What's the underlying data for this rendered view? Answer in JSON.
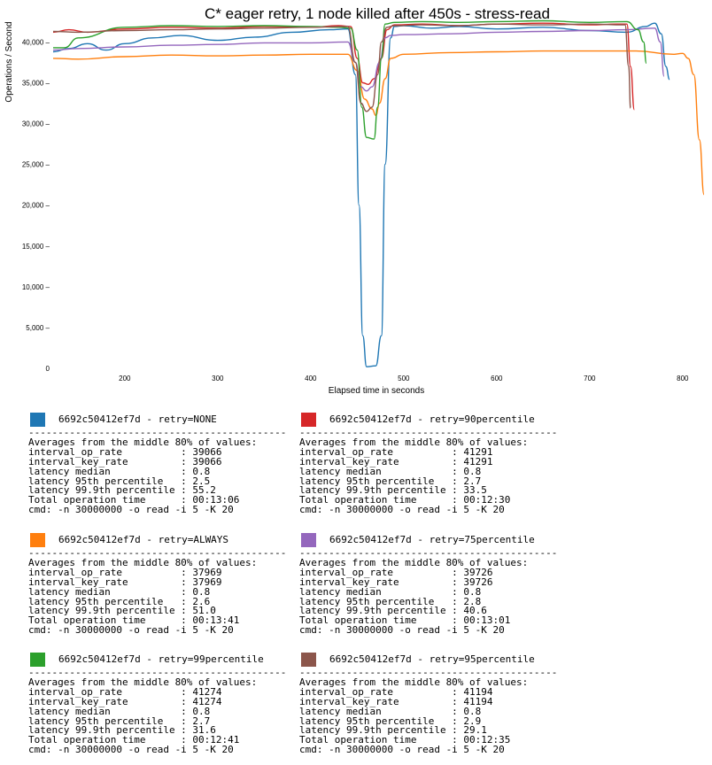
{
  "chart_data": {
    "type": "line",
    "title": "C* eager retry, 1 node killed after 450s - stress-read",
    "xlabel": "Elapsed time in seconds",
    "ylabel": "Operations / Second",
    "xlim": [
      123,
      823
    ],
    "ylim": [
      0,
      42000
    ],
    "xticks": [
      200,
      300,
      400,
      500,
      600,
      700,
      800
    ],
    "yticks": [
      0,
      5000,
      10000,
      15000,
      20000,
      25000,
      30000,
      35000,
      40000
    ],
    "xtick_labels": [
      "200",
      "300",
      "400",
      "500",
      "600",
      "700",
      "800"
    ],
    "ytick_labels": [
      "0",
      "5,000 –",
      "10,000 –",
      "15,000 –",
      "20,000 –",
      "25,000 –",
      "30,000 –",
      "35,000 –",
      "40,000 –"
    ],
    "grid": false,
    "series": [
      {
        "name": "6692c50412ef7d - retry=NONE",
        "color": "#1f77b4",
        "x": [
          123,
          140,
          160,
          180,
          200,
          230,
          260,
          300,
          340,
          380,
          420,
          440,
          448,
          452,
          456,
          460,
          470,
          476,
          480,
          486,
          490,
          500,
          530,
          560,
          600,
          650,
          700,
          740,
          760,
          770,
          777,
          782,
          786
        ],
        "y": [
          38800,
          39200,
          39800,
          39000,
          39800,
          40500,
          40800,
          40200,
          40600,
          41200,
          41500,
          41600,
          36000,
          20000,
          4000,
          200,
          300,
          4000,
          25000,
          40500,
          41900,
          42000,
          41700,
          41900,
          41600,
          41800,
          41400,
          41200,
          41900,
          42300,
          41000,
          37000,
          35400
        ]
      },
      {
        "name": "6692c50412ef7d - retry=90percentile",
        "color": "#d62728",
        "x": [
          123,
          140,
          160,
          200,
          250,
          300,
          350,
          400,
          430,
          443,
          450,
          456,
          462,
          468,
          476,
          482,
          490,
          520,
          560,
          600,
          650,
          700,
          730,
          740,
          744,
          748
        ],
        "y": [
          41200,
          41500,
          41200,
          41600,
          41800,
          41700,
          41900,
          41800,
          42000,
          41900,
          38000,
          35000,
          34800,
          35500,
          38000,
          41500,
          42100,
          42200,
          42000,
          42200,
          42300,
          42100,
          42200,
          42200,
          37000,
          31700
        ]
      },
      {
        "name": "6692c50412ef7d - retry=ALWAYS",
        "color": "#ff7f0e",
        "x": [
          123,
          150,
          200,
          250,
          300,
          350,
          400,
          440,
          450,
          458,
          466,
          470,
          474,
          480,
          486,
          500,
          550,
          600,
          650,
          700,
          750,
          790,
          800,
          806,
          812,
          818,
          823
        ],
        "y": [
          38000,
          37900,
          38200,
          38400,
          38300,
          38400,
          38500,
          38500,
          36500,
          33000,
          31800,
          31000,
          32500,
          35500,
          38000,
          38500,
          38700,
          38800,
          38900,
          38900,
          38900,
          38500,
          38600,
          38000,
          36000,
          28000,
          21300
        ]
      },
      {
        "name": "6692c50412ef7d - retry=75percentile",
        "color": "#9467bd",
        "x": [
          123,
          150,
          200,
          250,
          300,
          350,
          400,
          440,
          448,
          454,
          460,
          466,
          474,
          480,
          486,
          500,
          550,
          600,
          650,
          700,
          740,
          770,
          776,
          780
        ],
        "y": [
          39000,
          39200,
          39400,
          39600,
          39700,
          39900,
          39900,
          40000,
          37500,
          34500,
          34000,
          34500,
          37500,
          40500,
          40800,
          40900,
          41000,
          41200,
          41300,
          41400,
          41500,
          41700,
          40000,
          35800
        ]
      },
      {
        "name": "6692c50412ef7d - retry=99percentile",
        "color": "#2ca02c",
        "x": [
          123,
          135,
          150,
          200,
          250,
          300,
          350,
          400,
          430,
          443,
          450,
          455,
          460,
          468,
          472,
          476,
          480,
          490,
          520,
          560,
          600,
          650,
          700,
          740,
          752,
          758,
          761
        ],
        "y": [
          39300,
          39300,
          40500,
          41800,
          42000,
          41900,
          42000,
          41900,
          41800,
          41700,
          39000,
          32000,
          28300,
          28100,
          32000,
          38000,
          42200,
          42400,
          42500,
          42400,
          42500,
          42600,
          42400,
          42500,
          41500,
          40000,
          37400
        ]
      },
      {
        "name": "6692c50412ef7d - retry=95percentile",
        "color": "#8c564b",
        "x": [
          123,
          150,
          200,
          250,
          300,
          350,
          400,
          440,
          448,
          454,
          460,
          466,
          472,
          476,
          482,
          490,
          520,
          560,
          600,
          650,
          700,
          738,
          742,
          744
        ],
        "y": [
          41300,
          41200,
          41400,
          41500,
          41600,
          41700,
          41800,
          41900,
          37500,
          32500,
          31500,
          32000,
          36000,
          40000,
          41800,
          42000,
          42100,
          42000,
          42200,
          42100,
          42200,
          42100,
          37000,
          31900
        ]
      }
    ]
  },
  "blocks": [
    {
      "color": "#1f77b4",
      "title": "6692c50412ef7d - retry=NONE",
      "separator": "--------------------------------------------",
      "header": "Averages from the middle 80% of values:",
      "op_rate_label": "interval_op_rate",
      "op_rate": "39066",
      "key_rate_label": "interval_key_rate",
      "key_rate": "39066",
      "median_label": "latency median",
      "median": "0.8",
      "p95_label": "latency 95th percentile",
      "p95": "2.5",
      "p999_label": "latency 99.9th percentile",
      "p999": "55.2",
      "total_label": "Total operation time",
      "total": "00:13:06",
      "cmd": "cmd: -n 30000000 -o read -i 5 -K 20"
    },
    {
      "color": "#d62728",
      "title": "6692c50412ef7d - retry=90percentile",
      "separator": "--------------------------------------------",
      "header": "Averages from the middle 80% of values:",
      "op_rate_label": "interval_op_rate",
      "op_rate": "41291",
      "key_rate_label": "interval_key_rate",
      "key_rate": "41291",
      "median_label": "latency median",
      "median": "0.8",
      "p95_label": "latency 95th percentile",
      "p95": "2.7",
      "p999_label": "latency 99.9th percentile",
      "p999": "33.5",
      "total_label": "Total operation time",
      "total": "00:12:30",
      "cmd": "cmd: -n 30000000 -o read -i 5 -K 20"
    },
    {
      "color": "#ff7f0e",
      "title": "6692c50412ef7d - retry=ALWAYS",
      "separator": "--------------------------------------------",
      "header": "Averages from the middle 80% of values:",
      "op_rate_label": "interval_op_rate",
      "op_rate": "37969",
      "key_rate_label": "interval_key_rate",
      "key_rate": "37969",
      "median_label": "latency median",
      "median": "0.8",
      "p95_label": "latency 95th percentile",
      "p95": "2.6",
      "p999_label": "latency 99.9th percentile",
      "p999": "51.0",
      "total_label": "Total operation time",
      "total": "00:13:41",
      "cmd": "cmd: -n 30000000 -o read -i 5 -K 20"
    },
    {
      "color": "#9467bd",
      "title": "6692c50412ef7d - retry=75percentile",
      "separator": "--------------------------------------------",
      "header": "Averages from the middle 80% of values:",
      "op_rate_label": "interval_op_rate",
      "op_rate": "39726",
      "key_rate_label": "interval_key_rate",
      "key_rate": "39726",
      "median_label": "latency median",
      "median": "0.8",
      "p95_label": "latency 95th percentile",
      "p95": "2.8",
      "p999_label": "latency 99.9th percentile",
      "p999": "40.6",
      "total_label": "Total operation time",
      "total": "00:13:01",
      "cmd": "cmd: -n 30000000 -o read -i 5 -K 20"
    },
    {
      "color": "#2ca02c",
      "title": "6692c50412ef7d - retry=99percentile",
      "separator": "--------------------------------------------",
      "header": "Averages from the middle 80% of values:",
      "op_rate_label": "interval_op_rate",
      "op_rate": "41274",
      "key_rate_label": "interval_key_rate",
      "key_rate": "41274",
      "median_label": "latency median",
      "median": "0.8",
      "p95_label": "latency 95th percentile",
      "p95": "2.7",
      "p999_label": "latency 99.9th percentile",
      "p999": "31.6",
      "total_label": "Total operation time",
      "total": "00:12:41",
      "cmd": "cmd: -n 30000000 -o read -i 5 -K 20"
    },
    {
      "color": "#8c564b",
      "title": "6692c50412ef7d - retry=95percentile",
      "separator": "--------------------------------------------",
      "header": "Averages from the middle 80% of values:",
      "op_rate_label": "interval_op_rate",
      "op_rate": "41194",
      "key_rate_label": "interval_key_rate",
      "key_rate": "41194",
      "median_label": "latency median",
      "median": "0.8",
      "p95_label": "latency 95th percentile",
      "p95": "2.9",
      "p999_label": "latency 99.9th percentile",
      "p999": "29.1",
      "total_label": "Total operation time",
      "total": "00:12:35",
      "cmd": "cmd: -n 30000000 -o read -i 5 -K 20"
    }
  ]
}
